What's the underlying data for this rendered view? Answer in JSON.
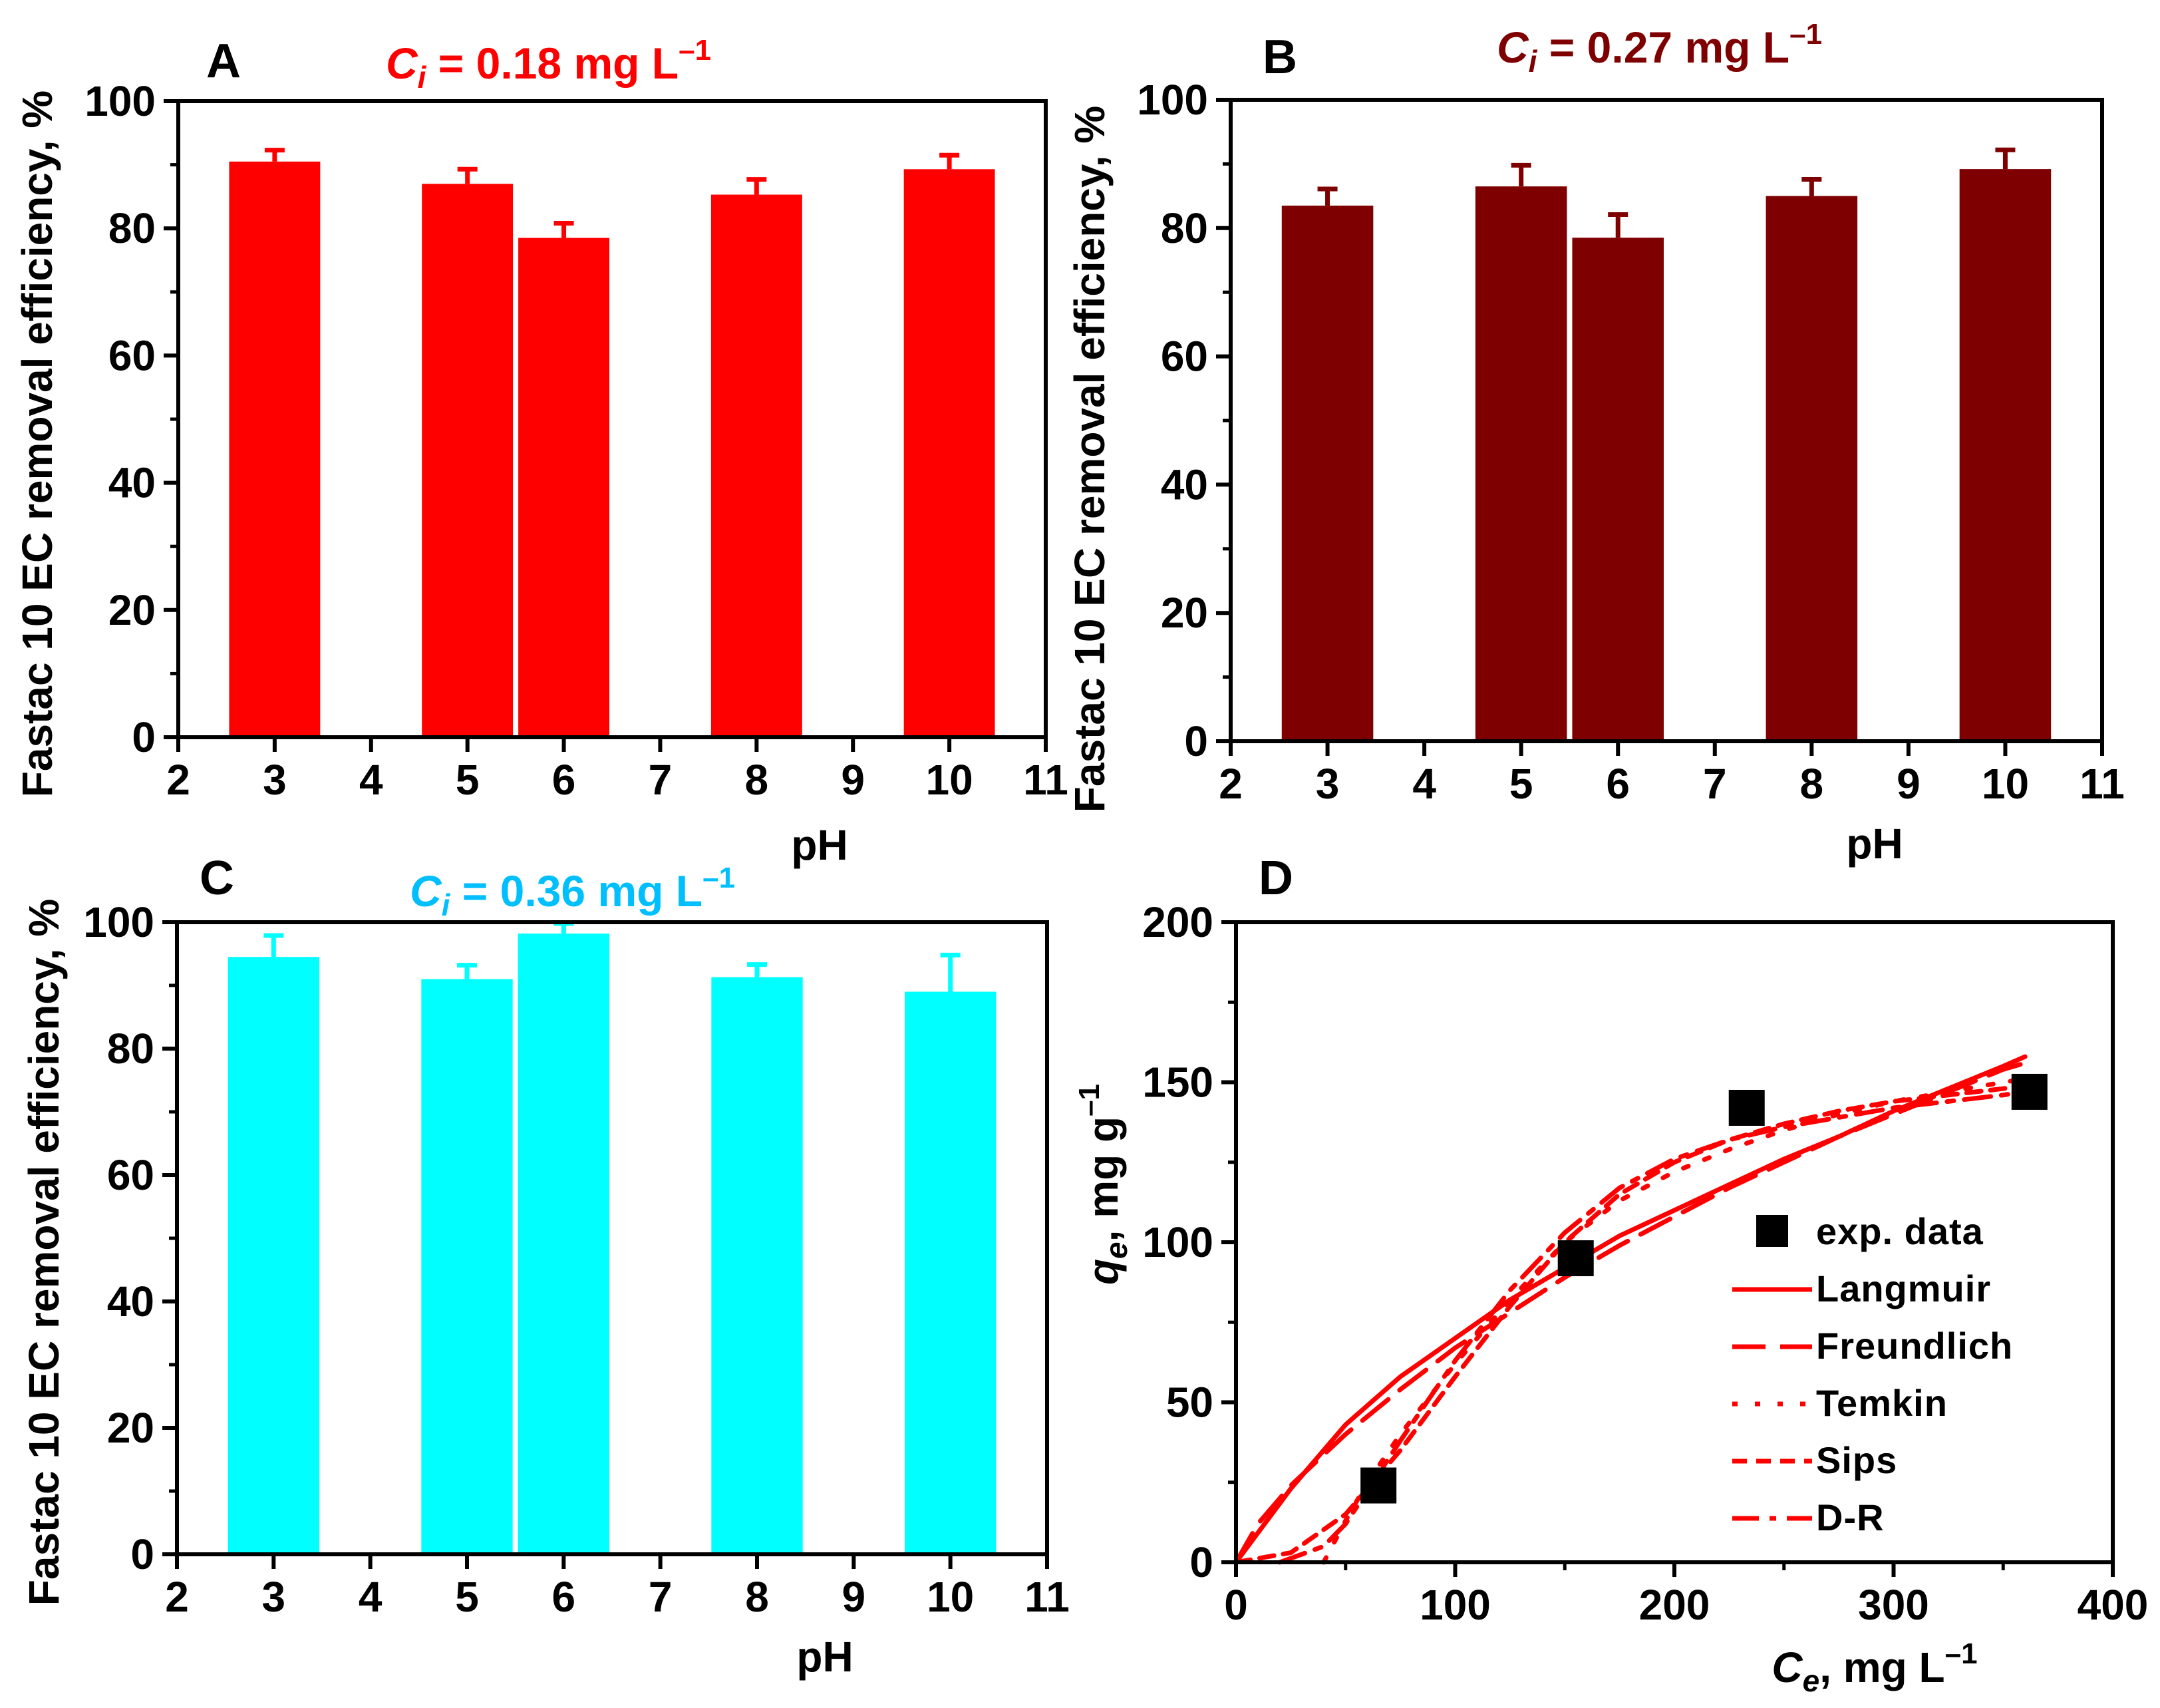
{
  "chart_data": [
    {
      "panel": "A",
      "type": "bar",
      "title_var": "C",
      "title_sub": "i",
      "title_value": " = 0.18 mg L",
      "title_sup": "–1",
      "color": "#ff0000",
      "x": [
        3,
        5,
        6,
        8,
        10
      ],
      "values": [
        90.5,
        87.0,
        78.5,
        85.3,
        89.3
      ],
      "errors": [
        1.8,
        2.3,
        2.3,
        2.4,
        2.2
      ],
      "xlabel": "pH",
      "ylabel": "Fastac 10 EC removal efficiency, %",
      "xlim": [
        2,
        11
      ],
      "ylim": [
        0,
        100
      ],
      "xticks": [
        "2",
        "3",
        "4",
        "5",
        "6",
        "7",
        "8",
        "9",
        "10",
        "11"
      ],
      "yticks": [
        "0",
        "20",
        "40",
        "60",
        "80",
        "100"
      ]
    },
    {
      "panel": "B",
      "type": "bar",
      "title_var": "C",
      "title_sub": "i",
      "title_value": " = 0.27 mg L",
      "title_sup": "–1",
      "color": "#7f0000",
      "x": [
        3,
        5,
        6,
        8,
        10
      ],
      "values": [
        83.5,
        86.5,
        78.5,
        85.0,
        89.2
      ],
      "errors": [
        2.6,
        3.3,
        3.6,
        2.6,
        3.0
      ],
      "xlabel": "pH",
      "ylabel": "Fastac 10 EC removal efficiency, %",
      "xlim": [
        2,
        11
      ],
      "ylim": [
        0,
        100
      ],
      "xticks": [
        "2",
        "3",
        "4",
        "5",
        "6",
        "7",
        "8",
        "9",
        "10",
        "11"
      ],
      "yticks": [
        "0",
        "20",
        "40",
        "60",
        "80",
        "100"
      ]
    },
    {
      "panel": "C",
      "type": "bar",
      "title_var": "C",
      "title_sub": "i",
      "title_value": " = 0.36 mg L",
      "title_sup": "–1",
      "color": "#00ffff",
      "title_color": "#00bfff",
      "x": [
        3,
        5,
        6,
        8,
        10
      ],
      "values": [
        94.5,
        91.0,
        98.2,
        91.3,
        89.0
      ],
      "errors": [
        3.4,
        2.2,
        1.6,
        2.0,
        5.8
      ],
      "xlabel": "pH",
      "ylabel": "Fastac 10 EC removal efficiency, %",
      "xlim": [
        2,
        11
      ],
      "ylim": [
        0,
        100
      ],
      "xticks": [
        "2",
        "3",
        "4",
        "5",
        "6",
        "7",
        "8",
        "9",
        "10",
        "11"
      ],
      "yticks": [
        "0",
        "20",
        "40",
        "60",
        "80",
        "100"
      ]
    },
    {
      "panel": "D",
      "type": "scatter",
      "xlabel_var": "C",
      "xlabel_sub": "e",
      "xlabel_unit": ", mg L",
      "xlabel_sup": "–1",
      "ylabel_var": "q",
      "ylabel_sub": "e",
      "ylabel_unit": ", mg g",
      "ylabel_sup": "–1",
      "xlim": [
        0,
        400
      ],
      "ylim": [
        0,
        200
      ],
      "xticks": [
        "0",
        "100",
        "200",
        "300",
        "400"
      ],
      "yticks": [
        "0",
        "50",
        "100",
        "150",
        "200"
      ],
      "line_color": "#ff0000",
      "marker_color": "#000000",
      "exp_data": {
        "name": "exp. data",
        "x": [
          65,
          155,
          233,
          362
        ],
        "y": [
          24,
          95,
          142,
          147
        ]
      },
      "fits": [
        {
          "name": "Langmuir",
          "style": "solid",
          "x": [
            0,
            25,
            50,
            75,
            100,
            125,
            150,
            175,
            200,
            225,
            250,
            275,
            300,
            325,
            350,
            360
          ],
          "y": [
            0,
            23,
            43,
            58,
            70,
            82,
            92,
            102,
            110,
            118,
            126,
            133,
            141,
            148,
            155,
            158
          ]
        },
        {
          "name": "Freundlich",
          "style": "dash",
          "x": [
            0,
            10,
            25,
            50,
            75,
            100,
            125,
            150,
            175,
            200,
            225,
            250,
            275,
            300,
            325,
            350,
            360
          ],
          "y": [
            0,
            12,
            24,
            40,
            54,
            67,
            78,
            89,
            99,
            108,
            117,
            125,
            133,
            140,
            147,
            154,
            156
          ]
        },
        {
          "name": "Temkin",
          "style": "dot",
          "x": [
            40,
            50,
            60,
            75,
            100,
            125,
            150,
            175,
            200,
            225,
            250,
            275,
            300,
            325,
            350,
            360
          ],
          "y": [
            0,
            13,
            25,
            40,
            62,
            82,
            100,
            113,
            122,
            129,
            135,
            140,
            144,
            147,
            150,
            151
          ]
        },
        {
          "name": "Sips",
          "style": "shortdash",
          "x": [
            0,
            25,
            50,
            75,
            100,
            125,
            150,
            175,
            200,
            225,
            250,
            275,
            300,
            325,
            350,
            360
          ],
          "y": [
            0,
            3,
            15,
            35,
            58,
            80,
            100,
            115,
            125,
            132,
            137,
            141,
            144,
            146,
            148,
            149
          ]
        },
        {
          "name": "D-R",
          "style": "dashdot",
          "x": [
            20,
            40,
            50,
            75,
            100,
            125,
            150,
            175,
            200,
            225,
            250,
            275,
            300,
            325,
            350,
            360
          ],
          "y": [
            0,
            5,
            12,
            38,
            63,
            85,
            103,
            117,
            126,
            132,
            136,
            139,
            142,
            144,
            146,
            147
          ]
        }
      ]
    }
  ]
}
